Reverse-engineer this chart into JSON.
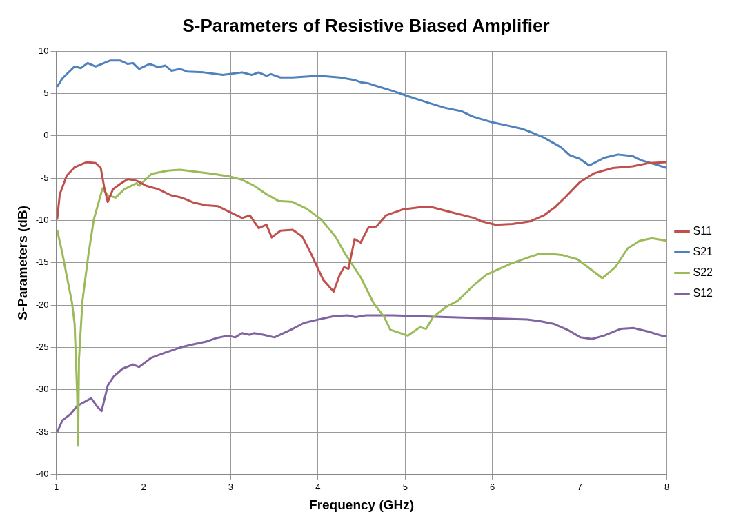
{
  "chart_data": {
    "type": "line",
    "title": "S-Parameters of Resistive Biased Amplifier",
    "xlabel": "Frequency (GHz)",
    "ylabel": "S-Parameters (dB)",
    "xlim": [
      1,
      8
    ],
    "xticks": [
      1,
      2,
      3,
      4,
      5,
      6,
      7,
      8
    ],
    "ylim": [
      -40,
      10
    ],
    "yticks": [
      -40,
      -35,
      -30,
      -25,
      -20,
      -15,
      -10,
      -5,
      0,
      5,
      10
    ],
    "grid": true,
    "legend": "right",
    "marker": "none",
    "line_style": "solid",
    "series": [
      {
        "name": "S11",
        "color": "#c0504d",
        "x": [
          1.01,
          1.04,
          1.12,
          1.21,
          1.35,
          1.45,
          1.51,
          1.55,
          1.59,
          1.65,
          1.73,
          1.82,
          1.92,
          2.03,
          2.17,
          2.31,
          2.44,
          2.58,
          2.72,
          2.85,
          2.99,
          3.13,
          3.22,
          3.32,
          3.41,
          3.47,
          3.57,
          3.71,
          3.82,
          3.92,
          4.06,
          4.18,
          4.25,
          4.3,
          4.35,
          4.37,
          4.42,
          4.49,
          4.58,
          4.67,
          4.78,
          4.97,
          5.19,
          5.3,
          5.52,
          5.79,
          5.88,
          6.04,
          6.23,
          6.43,
          6.59,
          6.72,
          6.84,
          7.0,
          7.17,
          7.38,
          7.61,
          7.8,
          8.0
        ],
        "values": [
          -9.9,
          -6.9,
          -4.7,
          -3.7,
          -3.1,
          -3.2,
          -3.8,
          -6.1,
          -7.8,
          -6.3,
          -5.7,
          -5.1,
          -5.3,
          -5.9,
          -6.3,
          -7.0,
          -7.3,
          -7.9,
          -8.2,
          -8.3,
          -9.0,
          -9.7,
          -9.4,
          -10.9,
          -10.5,
          -12.0,
          -11.2,
          -11.1,
          -11.9,
          -13.9,
          -17.0,
          -18.4,
          -16.4,
          -15.5,
          -15.7,
          -14.7,
          -12.2,
          -12.6,
          -10.8,
          -10.7,
          -9.4,
          -8.7,
          -8.4,
          -8.4,
          -9.0,
          -9.7,
          -10.1,
          -10.5,
          -10.4,
          -10.1,
          -9.4,
          -8.4,
          -7.2,
          -5.5,
          -4.4,
          -3.8,
          -3.6,
          -3.2,
          -3.1
        ]
      },
      {
        "name": "S21",
        "color": "#4f81bd",
        "x": [
          1.01,
          1.07,
          1.21,
          1.28,
          1.36,
          1.45,
          1.62,
          1.73,
          1.82,
          1.88,
          1.95,
          2.07,
          2.17,
          2.25,
          2.32,
          2.42,
          2.5,
          2.69,
          2.91,
          3.13,
          3.24,
          3.32,
          3.41,
          3.46,
          3.57,
          3.71,
          4.01,
          4.25,
          4.42,
          4.5,
          4.58,
          4.7,
          4.86,
          5.03,
          5.24,
          5.46,
          5.65,
          5.77,
          5.9,
          6.0,
          6.18,
          6.35,
          6.45,
          6.59,
          6.78,
          6.89,
          7.0,
          7.11,
          7.28,
          7.44,
          7.61,
          7.71,
          7.88,
          8.0
        ],
        "values": [
          5.8,
          6.8,
          8.2,
          8.0,
          8.6,
          8.2,
          8.9,
          8.9,
          8.5,
          8.6,
          7.9,
          8.5,
          8.1,
          8.3,
          7.7,
          7.9,
          7.6,
          7.5,
          7.2,
          7.5,
          7.2,
          7.5,
          7.1,
          7.3,
          6.9,
          6.9,
          7.1,
          6.9,
          6.6,
          6.3,
          6.2,
          5.8,
          5.3,
          4.7,
          4.0,
          3.3,
          2.9,
          2.3,
          1.9,
          1.6,
          1.2,
          0.8,
          0.4,
          -0.2,
          -1.3,
          -2.3,
          -2.7,
          -3.5,
          -2.6,
          -2.2,
          -2.4,
          -2.9,
          -3.4,
          -3.8
        ]
      },
      {
        "name": "S22",
        "color": "#9bbb59",
        "x": [
          1.01,
          1.07,
          1.1,
          1.18,
          1.21,
          1.24,
          1.25,
          1.26,
          1.3,
          1.37,
          1.43,
          1.53,
          1.59,
          1.68,
          1.78,
          1.92,
          1.95,
          2.09,
          2.28,
          2.42,
          2.58,
          2.8,
          2.99,
          3.13,
          3.27,
          3.41,
          3.43,
          3.55,
          3.71,
          3.87,
          4.04,
          4.2,
          4.31,
          4.49,
          4.64,
          4.76,
          4.83,
          5.03,
          5.17,
          5.24,
          5.32,
          5.47,
          5.6,
          5.79,
          5.93,
          6.21,
          6.4,
          6.55,
          6.64,
          6.81,
          6.98,
          7.26,
          7.41,
          7.55,
          7.69,
          7.83,
          8.0
        ],
        "values": [
          -11.1,
          -13.9,
          -15.5,
          -19.7,
          -22.2,
          -30.6,
          -36.6,
          -26.4,
          -19.5,
          -13.9,
          -9.9,
          -6.2,
          -7.0,
          -7.3,
          -6.3,
          -5.6,
          -5.9,
          -4.5,
          -4.1,
          -4.0,
          -4.2,
          -4.5,
          -4.8,
          -5.2,
          -5.9,
          -6.9,
          -7.0,
          -7.7,
          -7.8,
          -8.6,
          -9.9,
          -11.9,
          -13.9,
          -16.7,
          -19.8,
          -21.4,
          -22.9,
          -23.6,
          -22.6,
          -22.8,
          -21.4,
          -20.2,
          -19.5,
          -17.6,
          -16.4,
          -15.1,
          -14.4,
          -13.9,
          -13.9,
          -14.1,
          -14.6,
          -16.8,
          -15.5,
          -13.3,
          -12.4,
          -12.1,
          -12.4
        ]
      },
      {
        "name": "S12",
        "color": "#8064a2",
        "x": [
          1.01,
          1.07,
          1.16,
          1.24,
          1.4,
          1.47,
          1.52,
          1.59,
          1.66,
          1.76,
          1.88,
          1.95,
          2.09,
          2.25,
          2.42,
          2.58,
          2.72,
          2.83,
          2.97,
          3.05,
          3.13,
          3.22,
          3.27,
          3.38,
          3.5,
          3.69,
          3.84,
          4.0,
          4.18,
          4.34,
          4.43,
          4.55,
          4.86,
          5.17,
          5.47,
          5.79,
          6.09,
          6.4,
          6.55,
          6.7,
          6.86,
          7.01,
          7.14,
          7.28,
          7.47,
          7.62,
          7.78,
          7.94,
          8.0
        ],
        "values": [
          -35.0,
          -33.6,
          -32.9,
          -31.9,
          -31.0,
          -32.0,
          -32.5,
          -29.5,
          -28.4,
          -27.5,
          -27.0,
          -27.3,
          -26.2,
          -25.6,
          -25.0,
          -24.6,
          -24.3,
          -23.9,
          -23.6,
          -23.8,
          -23.3,
          -23.5,
          -23.3,
          -23.5,
          -23.8,
          -22.9,
          -22.1,
          -21.7,
          -21.3,
          -21.2,
          -21.4,
          -21.2,
          -21.2,
          -21.3,
          -21.4,
          -21.5,
          -21.6,
          -21.7,
          -21.9,
          -22.2,
          -22.9,
          -23.8,
          -24.0,
          -23.6,
          -22.8,
          -22.7,
          -23.1,
          -23.6,
          -23.7
        ]
      }
    ]
  }
}
